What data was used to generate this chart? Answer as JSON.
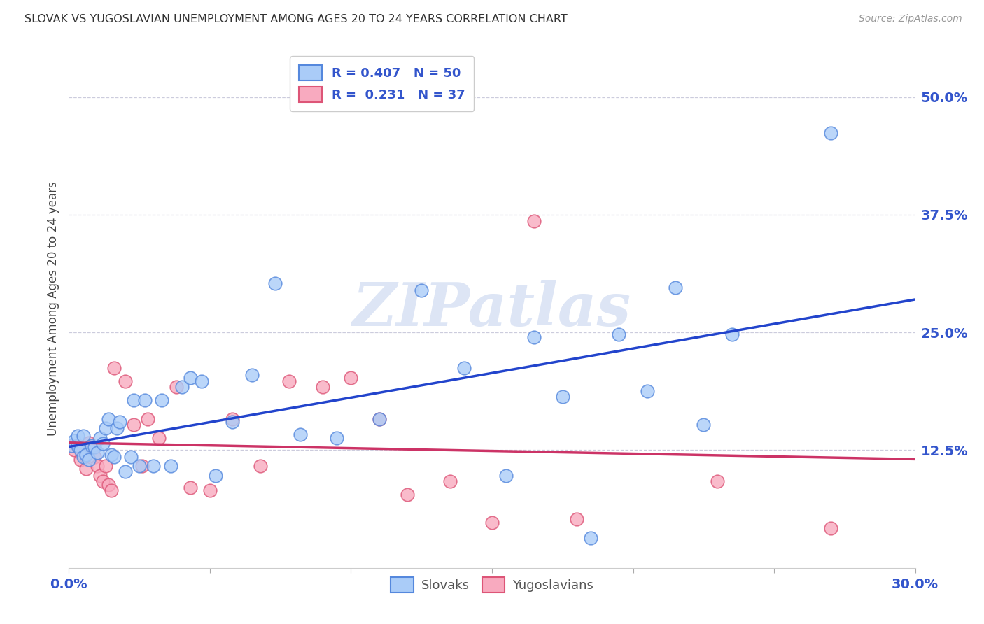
{
  "title": "SLOVAK VS YUGOSLAVIAN UNEMPLOYMENT AMONG AGES 20 TO 24 YEARS CORRELATION CHART",
  "source": "Source: ZipAtlas.com",
  "ylabel": "Unemployment Among Ages 20 to 24 years",
  "xlim": [
    0.0,
    0.3
  ],
  "ylim": [
    0.0,
    0.55
  ],
  "slovak_R": 0.407,
  "slovak_N": 50,
  "yugoslav_R": 0.231,
  "yugoslav_N": 37,
  "slovak_color": "#aaccf8",
  "yugoslav_color": "#f8aabf",
  "slovak_edge_color": "#5588dd",
  "yugoslav_edge_color": "#dd5577",
  "slovak_line_color": "#2244cc",
  "yugoslav_line_color": "#cc3366",
  "bg_color": "#ffffff",
  "grid_color": "#ccccdd",
  "tick_color": "#3355cc",
  "title_color": "#333333",
  "source_color": "#999999",
  "watermark_color": "#dde5f5",
  "watermark": "ZIPatlas",
  "slovak_x": [
    0.001,
    0.002,
    0.003,
    0.003,
    0.004,
    0.005,
    0.005,
    0.006,
    0.007,
    0.008,
    0.009,
    0.01,
    0.011,
    0.012,
    0.013,
    0.014,
    0.015,
    0.016,
    0.017,
    0.018,
    0.02,
    0.022,
    0.023,
    0.025,
    0.027,
    0.03,
    0.033,
    0.036,
    0.04,
    0.043,
    0.047,
    0.052,
    0.058,
    0.065,
    0.073,
    0.082,
    0.095,
    0.11,
    0.125,
    0.14,
    0.155,
    0.165,
    0.175,
    0.185,
    0.195,
    0.205,
    0.215,
    0.225,
    0.235,
    0.27
  ],
  "slovak_y": [
    0.13,
    0.135,
    0.13,
    0.14,
    0.125,
    0.118,
    0.14,
    0.12,
    0.115,
    0.13,
    0.128,
    0.122,
    0.138,
    0.132,
    0.148,
    0.158,
    0.12,
    0.118,
    0.148,
    0.155,
    0.102,
    0.118,
    0.178,
    0.108,
    0.178,
    0.108,
    0.178,
    0.108,
    0.192,
    0.202,
    0.198,
    0.098,
    0.155,
    0.205,
    0.302,
    0.142,
    0.138,
    0.158,
    0.295,
    0.212,
    0.098,
    0.245,
    0.182,
    0.032,
    0.248,
    0.188,
    0.298,
    0.152,
    0.248,
    0.462
  ],
  "yugoslav_x": [
    0.001,
    0.002,
    0.003,
    0.004,
    0.005,
    0.006,
    0.007,
    0.008,
    0.009,
    0.01,
    0.011,
    0.012,
    0.013,
    0.014,
    0.015,
    0.016,
    0.02,
    0.023,
    0.026,
    0.028,
    0.032,
    0.038,
    0.043,
    0.05,
    0.058,
    0.068,
    0.078,
    0.09,
    0.1,
    0.11,
    0.12,
    0.135,
    0.15,
    0.165,
    0.18,
    0.23,
    0.27
  ],
  "yugoslav_y": [
    0.13,
    0.125,
    0.13,
    0.115,
    0.12,
    0.105,
    0.133,
    0.128,
    0.118,
    0.108,
    0.098,
    0.092,
    0.108,
    0.088,
    0.082,
    0.212,
    0.198,
    0.152,
    0.108,
    0.158,
    0.138,
    0.192,
    0.085,
    0.082,
    0.158,
    0.108,
    0.198,
    0.192,
    0.202,
    0.158,
    0.078,
    0.092,
    0.048,
    0.368,
    0.052,
    0.092,
    0.042
  ]
}
